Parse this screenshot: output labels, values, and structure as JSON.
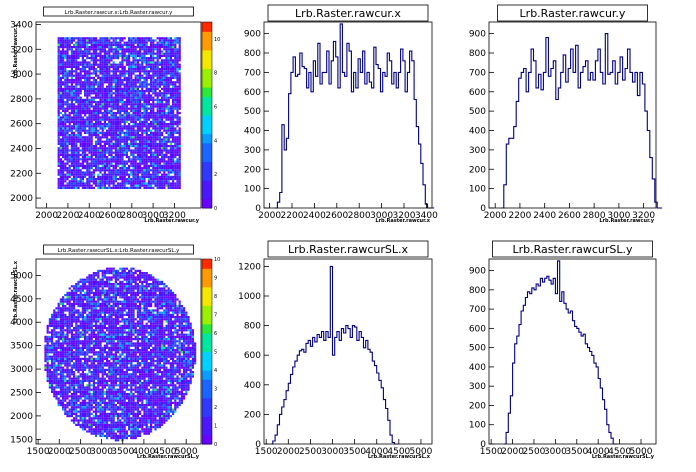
{
  "chart_data": [
    {
      "type": "heatmap",
      "title": "Lrb.Raster.rawcur.x:Lrb.Raster.rawcur.y",
      "xlabel": "Lrb.Raster.rawcur.y",
      "ylabel": "Lrb.Raster.rawcur.x",
      "xlim": [
        1900,
        3450
      ],
      "ylim": [
        1920,
        3420
      ],
      "xticks": [
        "2000",
        "2200",
        "2400",
        "2600",
        "2800",
        "3000",
        "3200"
      ],
      "yticks": [
        "2000",
        "2200",
        "2400",
        "2600",
        "2800",
        "3000",
        "3200",
        "3400"
      ],
      "zlim": [
        0,
        11
      ],
      "zticks": [
        "0",
        "2",
        "4",
        "6",
        "8",
        "10"
      ],
      "shape": "square",
      "region": {
        "x": [
          2100,
          3250
        ],
        "y": [
          2080,
          3300
        ]
      }
    },
    {
      "type": "bar",
      "title": "Lrb.Raster.rawcur.x",
      "xlabel": "Lrb.Raster.rawcur.x",
      "ylabel": "",
      "xlim": [
        1950,
        3450
      ],
      "ylim": [
        0,
        960
      ],
      "xticks": [
        "2000",
        "2200",
        "2400",
        "2600",
        "2800",
        "3000",
        "3200",
        "3400"
      ],
      "yticks": [
        "0",
        "100",
        "200",
        "300",
        "400",
        "500",
        "600",
        "700",
        "800",
        "900"
      ],
      "bin_width": 20,
      "x_start": 2050,
      "values": [
        0,
        30,
        80,
        430,
        300,
        360,
        590,
        700,
        780,
        680,
        690,
        800,
        730,
        720,
        620,
        700,
        600,
        760,
        680,
        850,
        640,
        700,
        700,
        810,
        640,
        760,
        860,
        780,
        620,
        950,
        700,
        680,
        850,
        810,
        600,
        700,
        620,
        770,
        700,
        810,
        640,
        700,
        650,
        620,
        830,
        740,
        720,
        600,
        700,
        680,
        800,
        760,
        640,
        700,
        620,
        700,
        820,
        760,
        600,
        700,
        810,
        760,
        560,
        420,
        330,
        230,
        120,
        20,
        0,
        0,
        0
      ]
    },
    {
      "type": "bar",
      "title": "Lrb.Raster.rawcur.y",
      "xlabel": "Lrb.Raster.rawcur.y",
      "ylabel": "",
      "xlim": [
        1950,
        3300
      ],
      "ylim": [
        0,
        960
      ],
      "xticks": [
        "2000",
        "2200",
        "2400",
        "2600",
        "2800",
        "3000",
        "3200"
      ],
      "yticks": [
        "0",
        "100",
        "200",
        "300",
        "400",
        "500",
        "600",
        "700",
        "800",
        "900"
      ],
      "bin_width": 20,
      "x_start": 2050,
      "values": [
        0,
        120,
        330,
        360,
        360,
        420,
        550,
        670,
        700,
        720,
        600,
        700,
        820,
        760,
        620,
        690,
        610,
        700,
        880,
        680,
        720,
        760,
        560,
        620,
        700,
        790,
        650,
        720,
        820,
        700,
        840,
        620,
        700,
        730,
        760,
        660,
        700,
        660,
        760,
        820,
        700,
        640,
        900,
        690,
        700,
        760,
        640,
        700,
        780,
        660,
        720,
        820,
        700,
        650,
        700,
        580,
        700,
        640,
        500,
        400,
        260,
        150,
        30,
        0,
        0
      ]
    },
    {
      "type": "heatmap",
      "title": "Lrb.Raster.rawcurSL.x:Lrb.Raster.rawcurSL.y",
      "xlabel": "Lrb.Raster.rawcurSL.y",
      "ylabel": "Lrb.Raster.rawcurSL.x",
      "xlim": [
        1450,
        5350
      ],
      "ylim": [
        1400,
        5350
      ],
      "xticks": [
        "1500",
        "2000",
        "2500",
        "3000",
        "3500",
        "4000",
        "4500",
        "5000"
      ],
      "yticks": [
        "1500",
        "2000",
        "2500",
        "3000",
        "3500",
        "4000",
        "4500",
        "5000"
      ],
      "zlim": [
        0,
        10
      ],
      "zticks": [
        "0",
        "1",
        "2",
        "3",
        "4",
        "5",
        "6",
        "7",
        "8",
        "9",
        "10"
      ],
      "shape": "circle",
      "region": {
        "cx": 3400,
        "cy": 3350,
        "rx": 1800,
        "ry": 1850
      }
    },
    {
      "type": "bar",
      "title": "Lrb.Raster.rawcurSL.x",
      "xlabel": "Lrb.Raster.rawcurSL.x",
      "ylabel": "",
      "xlim": [
        1450,
        5250
      ],
      "ylim": [
        0,
        1250
      ],
      "xticks": [
        "1500",
        "2000",
        "2500",
        "3000",
        "3500",
        "4000",
        "4500",
        "5000"
      ],
      "yticks": [
        "0",
        "200",
        "400",
        "600",
        "800",
        "1000",
        "1200"
      ],
      "bin_width": 50,
      "x_start": 1600,
      "values": [
        0,
        20,
        60,
        130,
        200,
        250,
        300,
        360,
        410,
        470,
        520,
        560,
        600,
        630,
        640,
        620,
        680,
        700,
        660,
        720,
        690,
        740,
        720,
        760,
        700,
        760,
        720,
        1200,
        600,
        720,
        760,
        700,
        780,
        750,
        800,
        780,
        720,
        800,
        790,
        700,
        760,
        720,
        650,
        700,
        640,
        620,
        560,
        530,
        480,
        430,
        380,
        300,
        240,
        160,
        60,
        10,
        0,
        0
      ]
    },
    {
      "type": "bar",
      "title": "Lrb.Raster.rawcurSL.y",
      "xlabel": "Lrb.Raster.rawcurSL.y",
      "ylabel": "",
      "xlim": [
        1450,
        5350
      ],
      "ylim": [
        0,
        960
      ],
      "xticks": [
        "1500",
        "2000",
        "2500",
        "3000",
        "3500",
        "4000",
        "4500",
        "5000"
      ],
      "yticks": [
        "0",
        "100",
        "200",
        "300",
        "400",
        "500",
        "600",
        "700",
        "800",
        "900"
      ],
      "bin_width": 50,
      "x_start": 1800,
      "values": [
        0,
        60,
        160,
        250,
        420,
        520,
        560,
        620,
        690,
        720,
        760,
        790,
        780,
        810,
        800,
        830,
        820,
        860,
        840,
        860,
        870,
        850,
        830,
        860,
        780,
        950,
        740,
        790,
        730,
        700,
        680,
        690,
        640,
        610,
        600,
        580,
        560,
        570,
        520,
        500,
        480,
        460,
        420,
        400,
        340,
        290,
        230,
        180,
        100,
        60,
        30,
        0,
        0
      ]
    }
  ]
}
